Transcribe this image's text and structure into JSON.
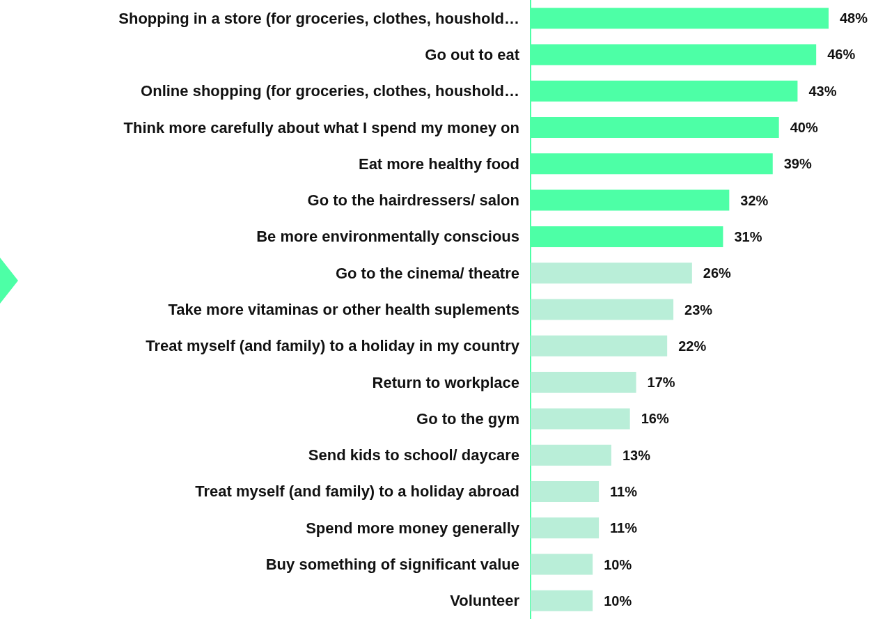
{
  "chart_data": {
    "type": "bar",
    "orientation": "horizontal",
    "tick_labels": "y",
    "categories": [
      "Shopping in a store (for groceries, clothes, houshold…",
      "Go out to eat",
      "Online shopping (for groceries, clothes, houshold…",
      "Think more carefully about what I spend my money on",
      "Eat more healthy food",
      "Go to the hairdressers/ salon",
      "Be more environmentally conscious",
      "Go to the cinema/ theatre",
      "Take more vitaminas or other health suplements",
      "Treat myself (and family) to a holiday in my country",
      "Return to workplace",
      "Go to the gym",
      "Send kids to school/ daycare",
      "Treat myself (and family) to a holiday abroad",
      "Spend more money generally",
      "Buy something of significant value",
      "Volunteer"
    ],
    "values": [
      48,
      46,
      43,
      40,
      39,
      32,
      31,
      26,
      23,
      22,
      17,
      16,
      13,
      11,
      11,
      10,
      10
    ],
    "value_labels": [
      "48%",
      "46%",
      "43%",
      "40%",
      "39%",
      "32%",
      "31%",
      "26%",
      "23%",
      "22%",
      "17%",
      "16%",
      "13%",
      "11%",
      "11%",
      "10%",
      "10%"
    ],
    "colors": [
      "#4dffa6",
      "#4dffa6",
      "#4dffa6",
      "#4dffa6",
      "#4dffa6",
      "#4dffa6",
      "#4dffa6",
      "#b9eed8",
      "#b9eed8",
      "#b9eed8",
      "#b9eed8",
      "#b9eed8",
      "#b9eed8",
      "#b9eed8",
      "#b9eed8",
      "#b9eed8",
      "#b9eed8"
    ]
  }
}
